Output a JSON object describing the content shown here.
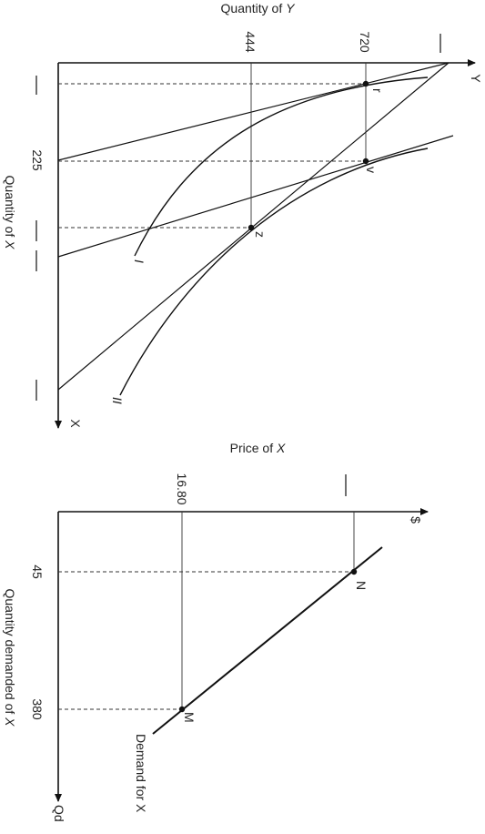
{
  "top_diagram": {
    "title_prefix": "Quantity of ",
    "title_var": "Y",
    "axis_end_y": "Y",
    "axis_end_x": "X",
    "side_label_prefix": "Quantity of ",
    "side_label_var": "X",
    "ticks": {
      "y_444": "444",
      "y_720": "720",
      "x_225": "225"
    },
    "points": {
      "r": "r",
      "v": "v",
      "z": "z"
    },
    "curves": {
      "I": "I",
      "II": "II"
    }
  },
  "bottom_diagram": {
    "title_prefix": "Price of ",
    "title_var": "X",
    "axis_end_price": "$",
    "axis_end_qty": "Qd",
    "side_label_prefix": "Quantity demanded of ",
    "side_label_var": "X",
    "ticks": {
      "p_1680": "16.80",
      "q_45": "45",
      "q_380": "380"
    },
    "points": {
      "N": "N",
      "M": "M"
    },
    "demand_label": "Demand for X"
  }
}
